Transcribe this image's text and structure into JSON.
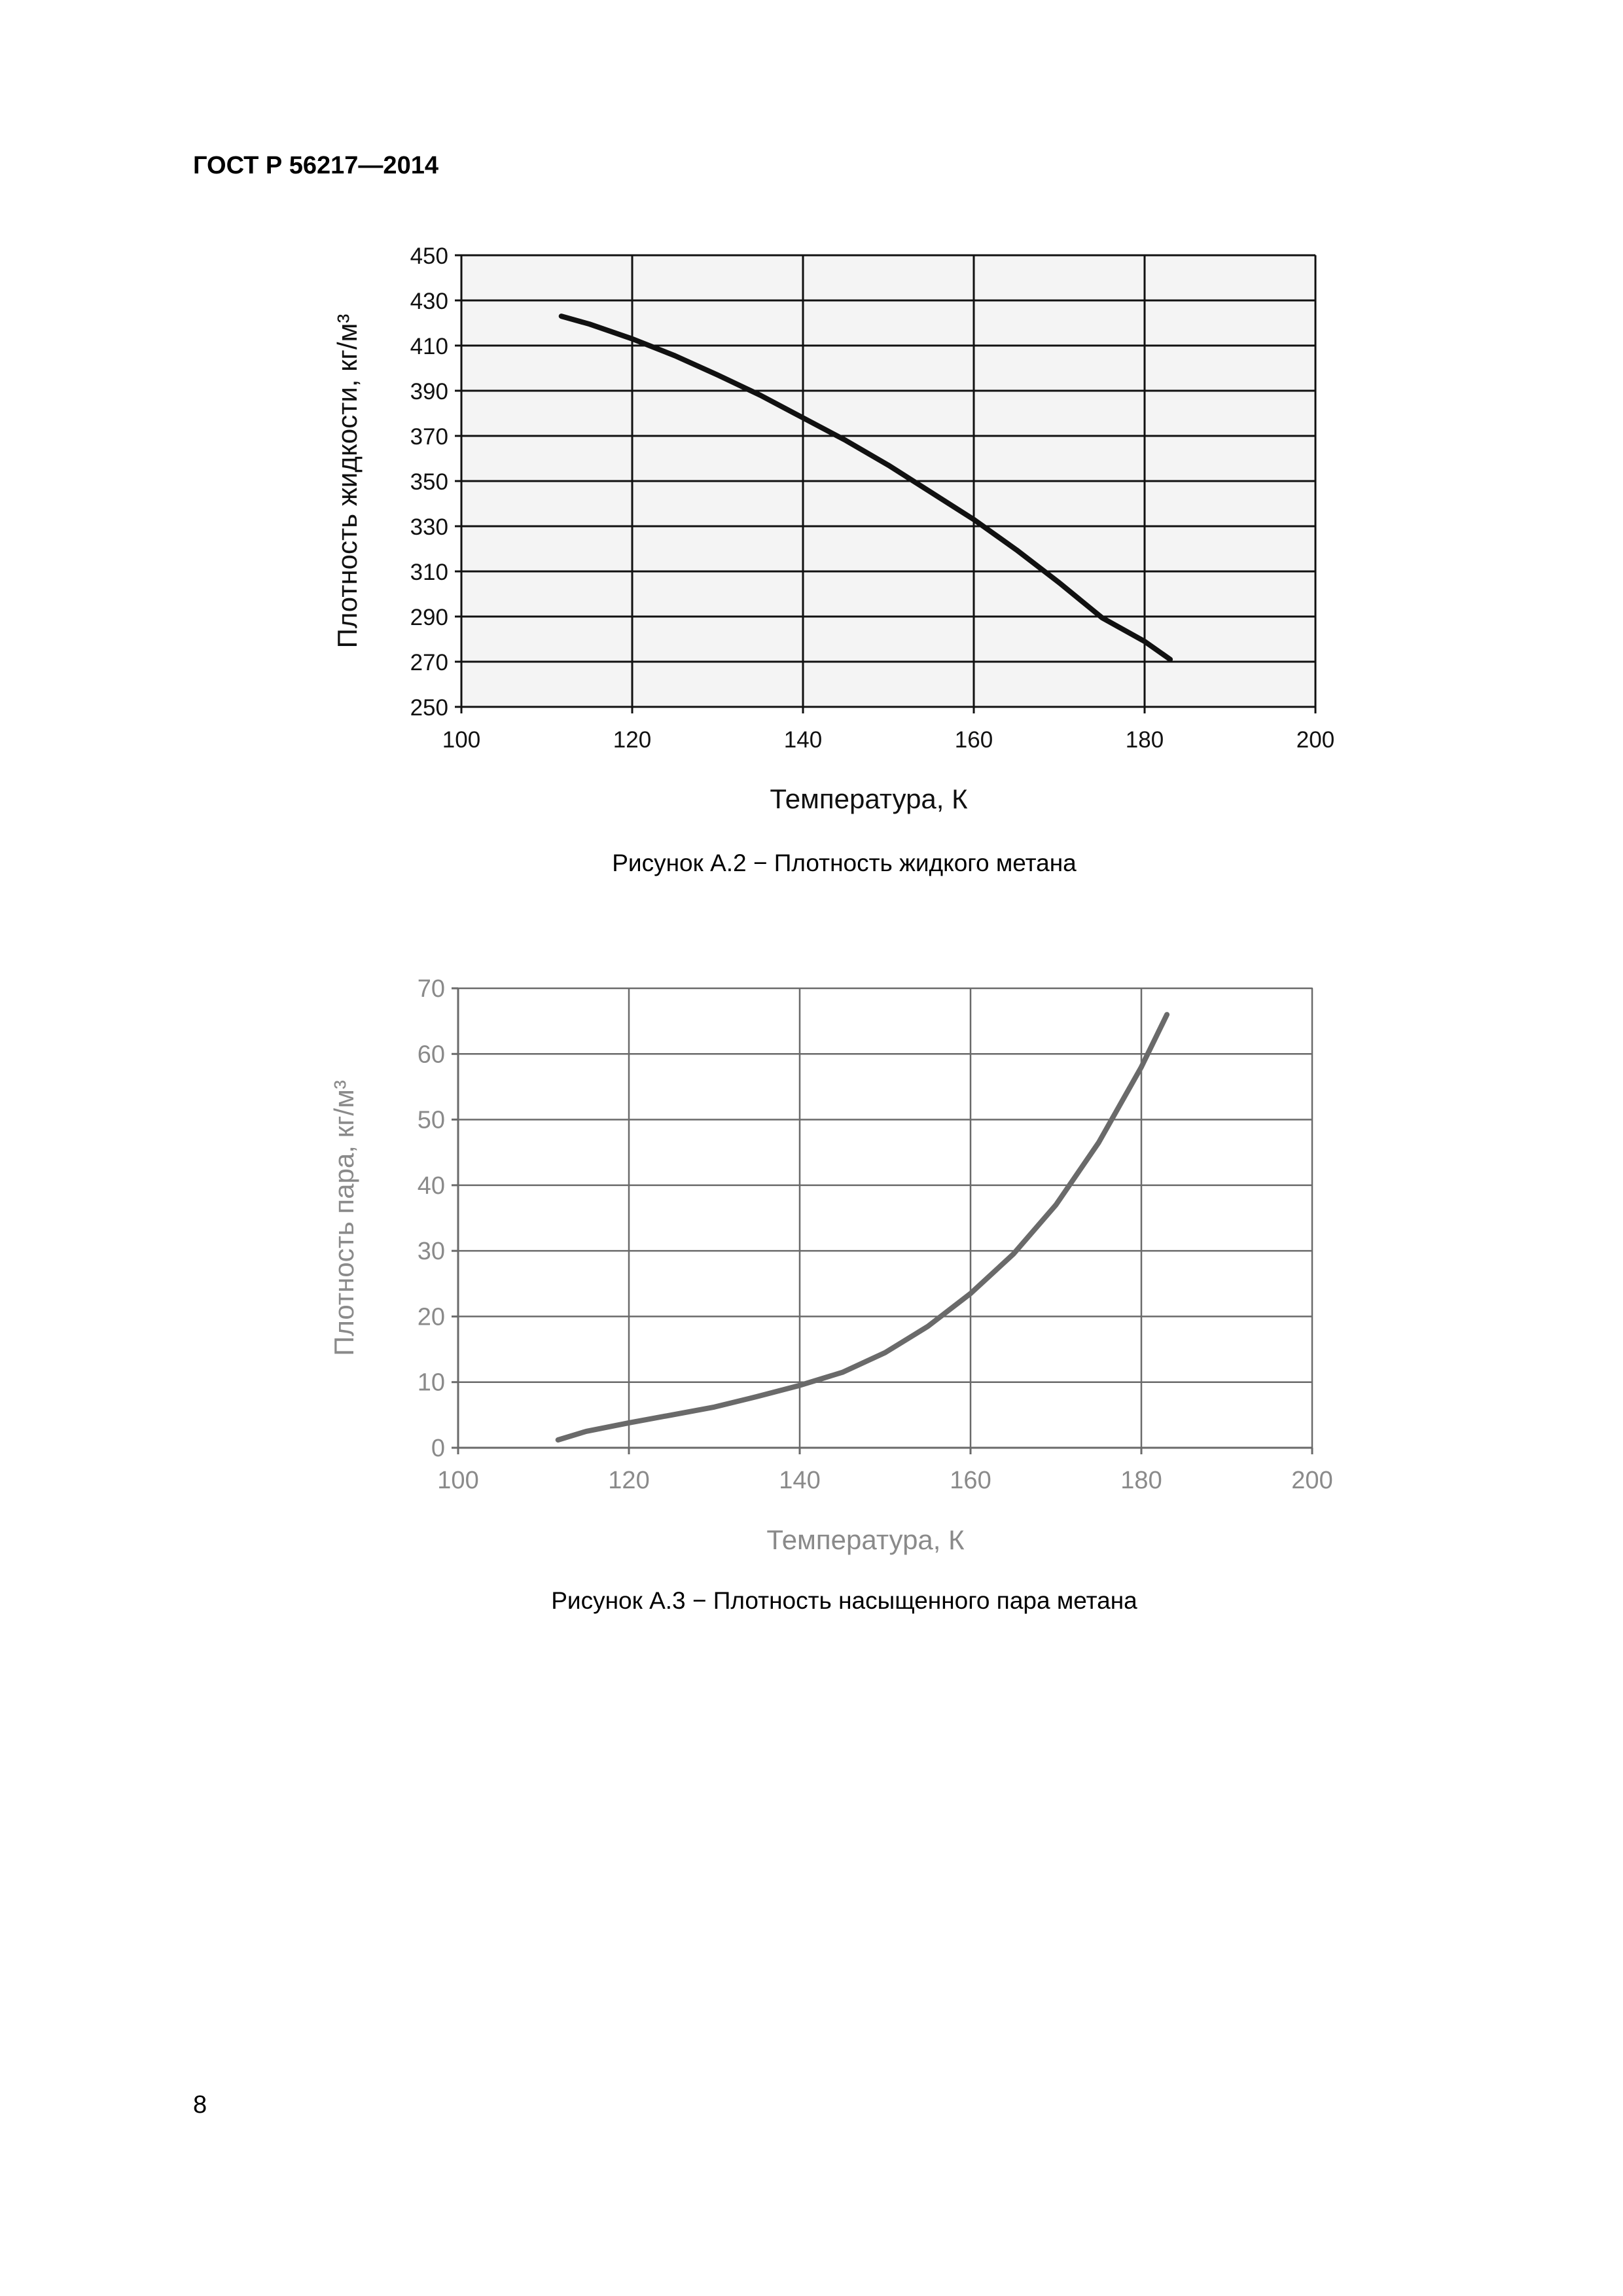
{
  "header": {
    "text": "ГОСТ Р 56217—2014"
  },
  "figures": [
    {
      "caption": "Рисунок А.2 − Плотность жидкого метана",
      "line_color": "#111111",
      "text_color": "#111111"
    },
    {
      "caption": "Рисунок А.3 − Плотность насыщенного пара метана",
      "line_color": "#6a6a6a",
      "text_color": "#8a8a8a"
    }
  ],
  "chart_data": [
    {
      "type": "line",
      "title": "",
      "xlabel": "Температура, К",
      "ylabel": "Плотность жидкости, кг/м³",
      "xlim": [
        100,
        200
      ],
      "ylim": [
        250,
        450
      ],
      "x_ticks": [
        100,
        120,
        140,
        160,
        180,
        200
      ],
      "y_ticks": [
        250,
        270,
        290,
        310,
        330,
        350,
        370,
        390,
        410,
        430,
        450
      ],
      "grid": true,
      "series": [
        {
          "x": [
            111.7,
            115,
            120,
            125,
            130,
            135,
            140,
            145,
            150,
            155,
            160,
            165,
            170,
            175,
            180,
            183
          ],
          "values": [
            423,
            419.5,
            413,
            405.5,
            397,
            388,
            378,
            368,
            357,
            345,
            333,
            319.5,
            305,
            289.5,
            279,
            271
          ]
        }
      ]
    },
    {
      "type": "line",
      "title": "",
      "xlabel": "Температура, К",
      "ylabel": "Плотность пара, кг/м³",
      "xlim": [
        100,
        200
      ],
      "ylim": [
        0,
        70
      ],
      "x_ticks": [
        100,
        120,
        140,
        160,
        180,
        200
      ],
      "y_ticks": [
        0,
        10,
        20,
        30,
        40,
        50,
        60,
        70
      ],
      "grid": true,
      "series": [
        {
          "x": [
            111.7,
            115,
            120,
            125,
            130,
            135,
            140,
            145,
            150,
            155,
            160,
            165,
            170,
            175,
            180,
            183
          ],
          "values": [
            1.2,
            2.5,
            3.8,
            5.0,
            6.2,
            7.8,
            9.5,
            11.5,
            14.5,
            18.5,
            23.5,
            29.5,
            37.0,
            46.5,
            58.0,
            66.0
          ]
        }
      ]
    }
  ],
  "page": {
    "number": "8"
  }
}
